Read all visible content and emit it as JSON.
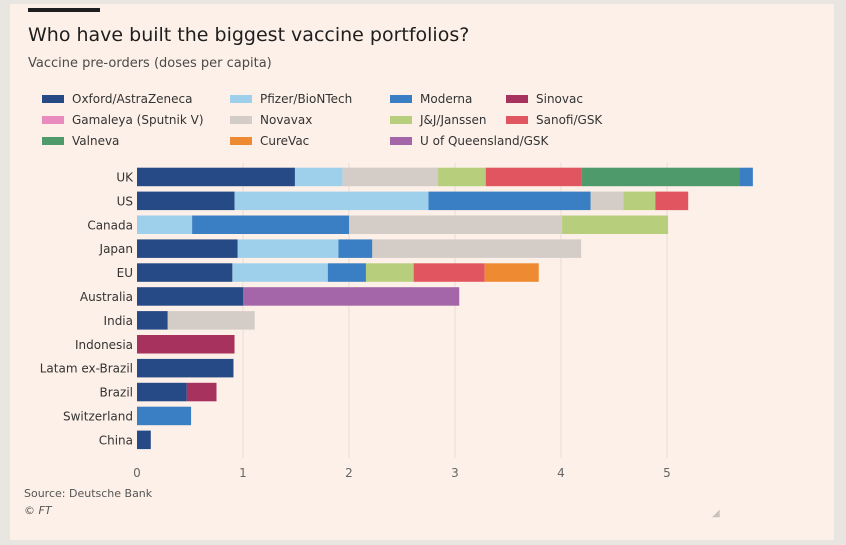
{
  "header": {
    "title": "Who have built the biggest vaccine portfolios?",
    "subtitle": "Vaccine pre-orders (doses per capita)"
  },
  "footer": {
    "source": "Source: Deutsche Bank",
    "credit": "© FT"
  },
  "colors": {
    "background": "#fdf0e8",
    "grid": "#e6dcd5"
  },
  "chart_data": {
    "type": "bar",
    "orientation": "horizontal",
    "stacked": true,
    "title": "Who have built the biggest vaccine portfolios?",
    "subtitle": "Vaccine pre-orders (doses per capita)",
    "legend_position": "top",
    "grid": true,
    "xlim": [
      0,
      6
    ],
    "xticks": [
      0,
      1,
      2,
      3,
      4,
      5
    ],
    "categories": [
      "UK",
      "US",
      "Canada",
      "Japan",
      "EU",
      "Australia",
      "India",
      "Indonesia",
      "Latam ex-Brazil",
      "Brazil",
      "Switzerland",
      "China"
    ],
    "series": [
      {
        "name": "Oxford/AstraZeneca",
        "color": "#254a85",
        "values": [
          1.49,
          0.92,
          0,
          0.95,
          0.9,
          1.0,
          0.29,
          0,
          0.91,
          0.47,
          0,
          0.13
        ]
      },
      {
        "name": "Pfizer/BioNTech",
        "color": "#9fd0eb",
        "values": [
          0.45,
          1.83,
          0.52,
          0.95,
          0.9,
          0,
          0,
          0,
          0,
          0,
          0,
          0
        ]
      },
      {
        "name": "Moderna",
        "color": "#3a7fc4",
        "values": [
          0,
          1.53,
          1.48,
          0.32,
          0.36,
          0,
          0,
          0,
          0,
          0,
          0.51,
          0
        ]
      },
      {
        "name": "Sinovac",
        "color": "#a8325e",
        "values": [
          0,
          0,
          0,
          0,
          0,
          0,
          0,
          0.92,
          0,
          0.28,
          0,
          0
        ]
      },
      {
        "name": "Gamaleya (Sputnik V)",
        "color": "#e98bbd",
        "values": [
          0,
          0,
          0,
          0,
          0,
          0,
          0,
          0,
          0,
          0,
          0,
          0
        ]
      },
      {
        "name": "Novavax",
        "color": "#d4ccc6",
        "values": [
          0.9,
          0.31,
          2.01,
          1.97,
          0,
          0,
          0.82,
          0,
          0,
          0,
          0,
          0
        ]
      },
      {
        "name": "J&J/Janssen",
        "color": "#b7cf7c",
        "values": [
          0.45,
          0.3,
          1.0,
          0,
          0.45,
          0,
          0,
          0,
          0,
          0,
          0,
          0
        ]
      },
      {
        "name": "Sanofi/GSK",
        "color": "#e0555f",
        "values": [
          0.9,
          0.31,
          0,
          0,
          0.67,
          0,
          0,
          0,
          0,
          0,
          0,
          0
        ]
      },
      {
        "name": "Valneva",
        "color": "#4f9a6a",
        "values": [
          1.49,
          0,
          0,
          0,
          0,
          0,
          0,
          0,
          0,
          0,
          0,
          0
        ]
      },
      {
        "name": "CureVac",
        "color": "#ee8b32",
        "values": [
          0,
          0,
          0,
          0,
          0.51,
          0,
          0,
          0,
          0,
          0,
          0,
          0
        ]
      },
      {
        "name": "U of Queensland/GSK",
        "color": "#a466a8",
        "values": [
          0,
          0,
          0,
          0,
          0,
          2.04,
          0,
          0,
          0,
          0,
          0,
          0
        ]
      }
    ],
    "extra_segments": [
      {
        "category": "UK",
        "color": "#3a7fc4",
        "value": 0.13
      }
    ]
  }
}
